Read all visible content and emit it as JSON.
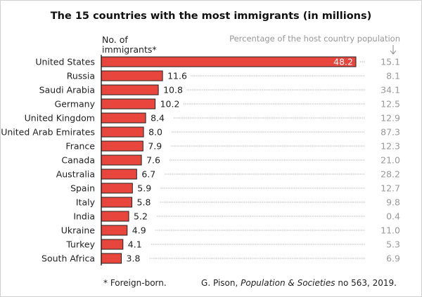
{
  "chart_data": {
    "type": "bar",
    "orientation": "horizontal",
    "title": "The 15 countries with the most immigrants (in millions)",
    "value_label": "No. of immigrants*",
    "value_label_lines": [
      "No. of",
      "immigrants*"
    ],
    "secondary_label": "Percentage of the host country population",
    "categories": [
      "United States",
      "Russia",
      "Saudi Arabia",
      "Germany",
      "United Kingdom",
      "United Arab Emirates",
      "France",
      "Canada",
      "Australia",
      "Spain",
      "Italy",
      "India",
      "Ukraine",
      "Turkey",
      "South Africa"
    ],
    "values": [
      48.2,
      11.6,
      10.8,
      10.2,
      8.4,
      8.0,
      7.9,
      7.6,
      6.7,
      5.9,
      5.8,
      5.2,
      4.9,
      4.1,
      3.8
    ],
    "value_labels": [
      "48.2",
      "11.6",
      "10.8",
      "10.2",
      "8.4",
      "8.0",
      "7.9",
      "7.6",
      "6.7",
      "5.9",
      "5.8",
      "5.2",
      "4.9",
      "4.1",
      "3.8"
    ],
    "percent_of_population": [
      "15.1",
      "8.1",
      "34.1",
      "12.5",
      "12.9",
      "87.3",
      "12.3",
      "21.0",
      "28.2",
      "12.7",
      "9.8",
      "0.4",
      "11.0",
      "5.3",
      "6.9"
    ],
    "bar_color": "#e8453c",
    "footnote": "*  Foreign-born.",
    "source_prefix": "G. Pison, ",
    "source_italic": "Population & Societies",
    "source_suffix": " no 563, 2019."
  }
}
